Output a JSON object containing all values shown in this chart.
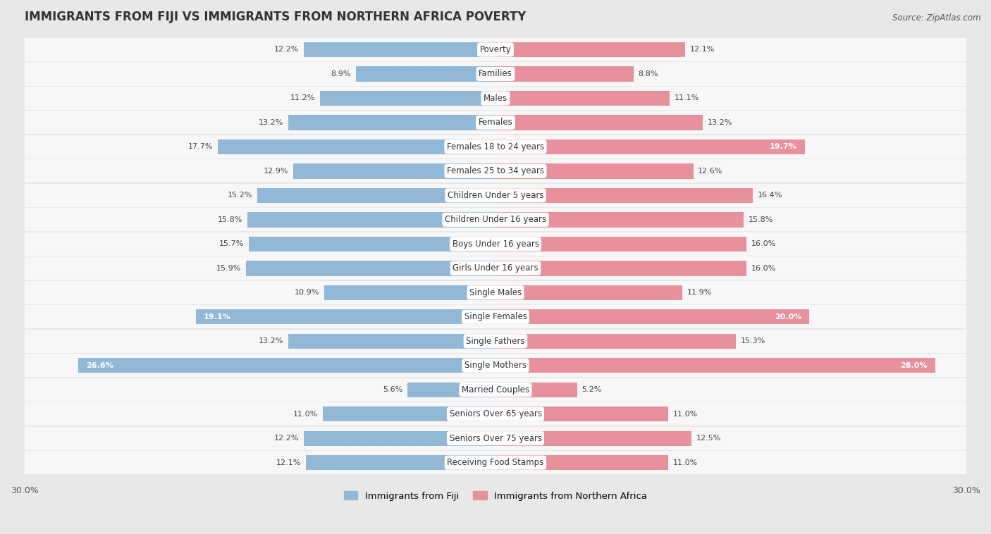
{
  "title": "IMMIGRANTS FROM FIJI VS IMMIGRANTS FROM NORTHERN AFRICA POVERTY",
  "source": "Source: ZipAtlas.com",
  "categories": [
    "Poverty",
    "Families",
    "Males",
    "Females",
    "Females 18 to 24 years",
    "Females 25 to 34 years",
    "Children Under 5 years",
    "Children Under 16 years",
    "Boys Under 16 years",
    "Girls Under 16 years",
    "Single Males",
    "Single Females",
    "Single Fathers",
    "Single Mothers",
    "Married Couples",
    "Seniors Over 65 years",
    "Seniors Over 75 years",
    "Receiving Food Stamps"
  ],
  "fiji_values": [
    12.2,
    8.9,
    11.2,
    13.2,
    17.7,
    12.9,
    15.2,
    15.8,
    15.7,
    15.9,
    10.9,
    19.1,
    13.2,
    26.6,
    5.6,
    11.0,
    12.2,
    12.1
  ],
  "nafrica_values": [
    12.1,
    8.8,
    11.1,
    13.2,
    19.7,
    12.6,
    16.4,
    15.8,
    16.0,
    16.0,
    11.9,
    20.0,
    15.3,
    28.0,
    5.2,
    11.0,
    12.5,
    11.0
  ],
  "fiji_color": "#92b8d8",
  "nafrica_color": "#e8909c",
  "fiji_label": "Immigrants from Fiji",
  "nafrica_label": "Immigrants from Northern Africa",
  "xlim": 30.0,
  "background_color": "#e8e8e8",
  "row_bg_color": "#f7f7f7",
  "title_fontsize": 12,
  "label_fontsize": 8.5,
  "value_fontsize": 8,
  "bar_height": 0.62
}
